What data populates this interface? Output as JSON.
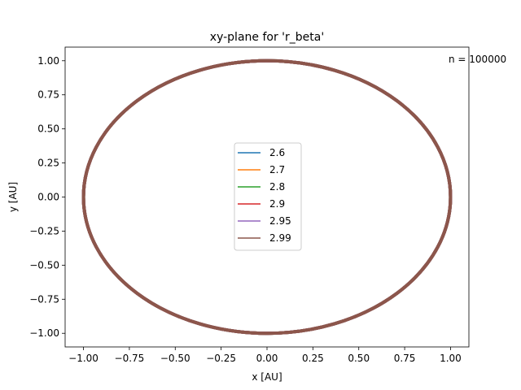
{
  "chart_data": {
    "type": "line",
    "title": "xy-plane for 'r_beta'",
    "xlabel": "x [AU]",
    "ylabel": "y [AU]",
    "xlim": [
      -1.1,
      1.1
    ],
    "ylim": [
      -1.1,
      1.1
    ],
    "xticks": [
      -1.0,
      -0.75,
      -0.5,
      -0.25,
      0.0,
      0.25,
      0.5,
      0.75,
      1.0
    ],
    "yticks": [
      -1.0,
      -0.75,
      -0.5,
      -0.25,
      0.0,
      0.25,
      0.5,
      0.75,
      1.0
    ],
    "xtick_labels": [
      "−1.00",
      "−0.75",
      "−0.50",
      "−0.25",
      "0.00",
      "0.25",
      "0.50",
      "0.75",
      "1.00"
    ],
    "ytick_labels": [
      "−1.00",
      "−0.75",
      "−0.50",
      "−0.25",
      "0.00",
      "0.25",
      "0.50",
      "0.75",
      "1.00"
    ],
    "grid": false,
    "legend_position": "center",
    "annotation": "n = 100000",
    "series": [
      {
        "name": "2.6",
        "color": "#1f77b4",
        "shape": "circle",
        "radius": 1.0
      },
      {
        "name": "2.7",
        "color": "#ff7f0e",
        "shape": "circle",
        "radius": 1.0
      },
      {
        "name": "2.8",
        "color": "#2ca02c",
        "shape": "circle",
        "radius": 1.0
      },
      {
        "name": "2.9",
        "color": "#d62728",
        "shape": "circle",
        "radius": 1.0
      },
      {
        "name": "2.95",
        "color": "#9467bd",
        "shape": "circle",
        "radius": 1.0
      },
      {
        "name": "2.99",
        "color": "#8c564b",
        "shape": "circle",
        "radius": 1.0
      }
    ]
  }
}
